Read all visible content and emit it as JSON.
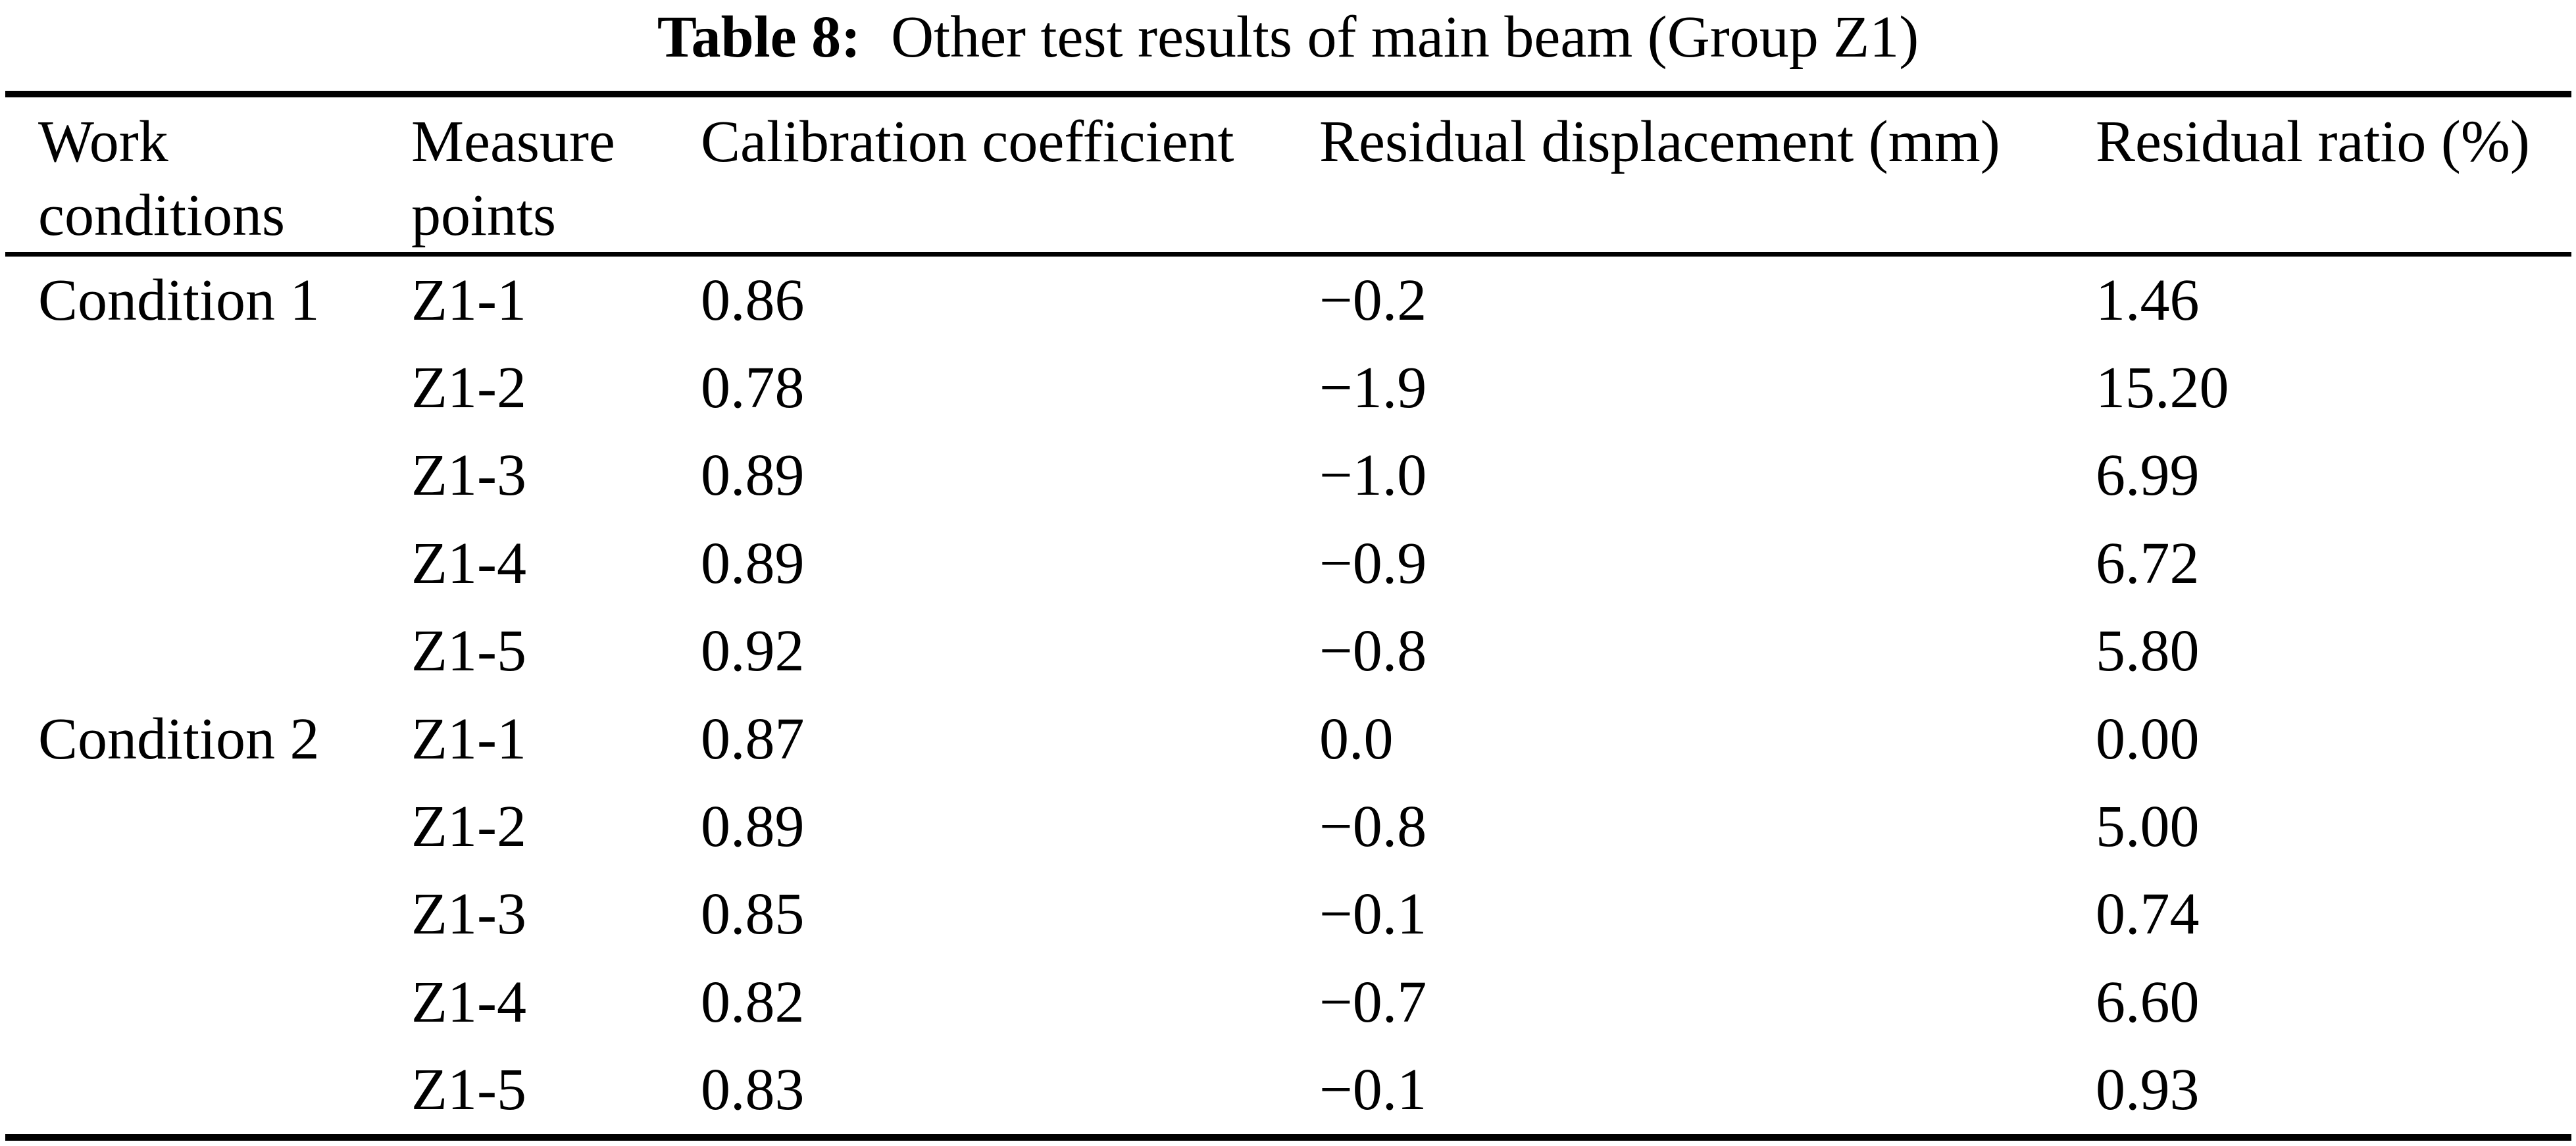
{
  "caption": {
    "label": "Table 8:",
    "text": "Other test results of main beam (Group Z1)"
  },
  "table": {
    "columns": [
      "Work conditions",
      "Measure points",
      "Calibration coefficient",
      "Residual displacement (mm)",
      "Residual ratio (%)"
    ],
    "rows": [
      {
        "condition": "Condition 1",
        "point": "Z1-1",
        "coeff": "0.86",
        "disp": "−0.2",
        "ratio": "1.46"
      },
      {
        "condition": "",
        "point": "Z1-2",
        "coeff": "0.78",
        "disp": "−1.9",
        "ratio": "15.20"
      },
      {
        "condition": "",
        "point": "Z1-3",
        "coeff": "0.89",
        "disp": "−1.0",
        "ratio": "6.99"
      },
      {
        "condition": "",
        "point": "Z1-4",
        "coeff": "0.89",
        "disp": "−0.9",
        "ratio": "6.72"
      },
      {
        "condition": "",
        "point": "Z1-5",
        "coeff": "0.92",
        "disp": "−0.8",
        "ratio": "5.80"
      },
      {
        "condition": "Condition 2",
        "point": "Z1-1",
        "coeff": "0.87",
        "disp": "0.0",
        "ratio": "0.00"
      },
      {
        "condition": "",
        "point": "Z1-2",
        "coeff": "0.89",
        "disp": "−0.8",
        "ratio": "5.00"
      },
      {
        "condition": "",
        "point": "Z1-3",
        "coeff": "0.85",
        "disp": "−0.1",
        "ratio": "0.74"
      },
      {
        "condition": "",
        "point": "Z1-4",
        "coeff": "0.82",
        "disp": "−0.7",
        "ratio": "6.60"
      },
      {
        "condition": "",
        "point": "Z1-5",
        "coeff": "0.83",
        "disp": "−0.1",
        "ratio": "0.93"
      }
    ]
  }
}
